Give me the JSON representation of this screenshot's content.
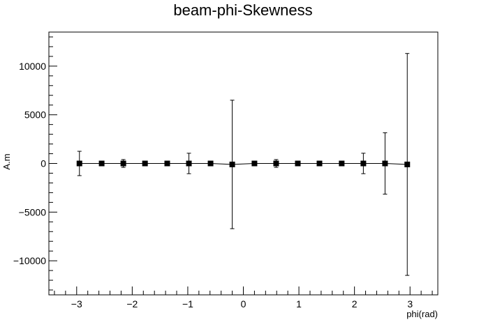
{
  "chart_data": {
    "type": "scatter",
    "title": "beam-phi-Skewness",
    "xlabel": "phi(rad)",
    "ylabel": "A.m",
    "xlim": [
      -3.5,
      3.5
    ],
    "ylim": [
      -13500,
      13500
    ],
    "grid": false,
    "x_ticks": [
      -3,
      -2,
      -1,
      0,
      1,
      2,
      3
    ],
    "x_tick_labels": [
      "−3",
      "−2",
      "−1",
      "0",
      "1",
      "2",
      "3"
    ],
    "y_ticks": [
      -10000,
      -5000,
      0,
      5000,
      10000
    ],
    "y_tick_labels": [
      "−10000",
      "−5000",
      "0",
      "5000",
      "10000"
    ],
    "series": [
      {
        "marker": "square",
        "color": "#000000",
        "x": [
          -2.95,
          -2.55,
          -2.16,
          -1.77,
          -1.37,
          -0.98,
          -0.59,
          -0.2,
          0.2,
          0.59,
          0.98,
          1.37,
          1.77,
          2.16,
          2.55,
          2.95
        ],
        "y": [
          0,
          0,
          0,
          0,
          0,
          0,
          0,
          -100,
          0,
          0,
          0,
          0,
          0,
          0,
          0,
          -100
        ],
        "yerr": [
          1250,
          0,
          400,
          0,
          0,
          1050,
          0,
          6600,
          0,
          400,
          0,
          0,
          0,
          1050,
          3150,
          11400
        ]
      }
    ]
  }
}
